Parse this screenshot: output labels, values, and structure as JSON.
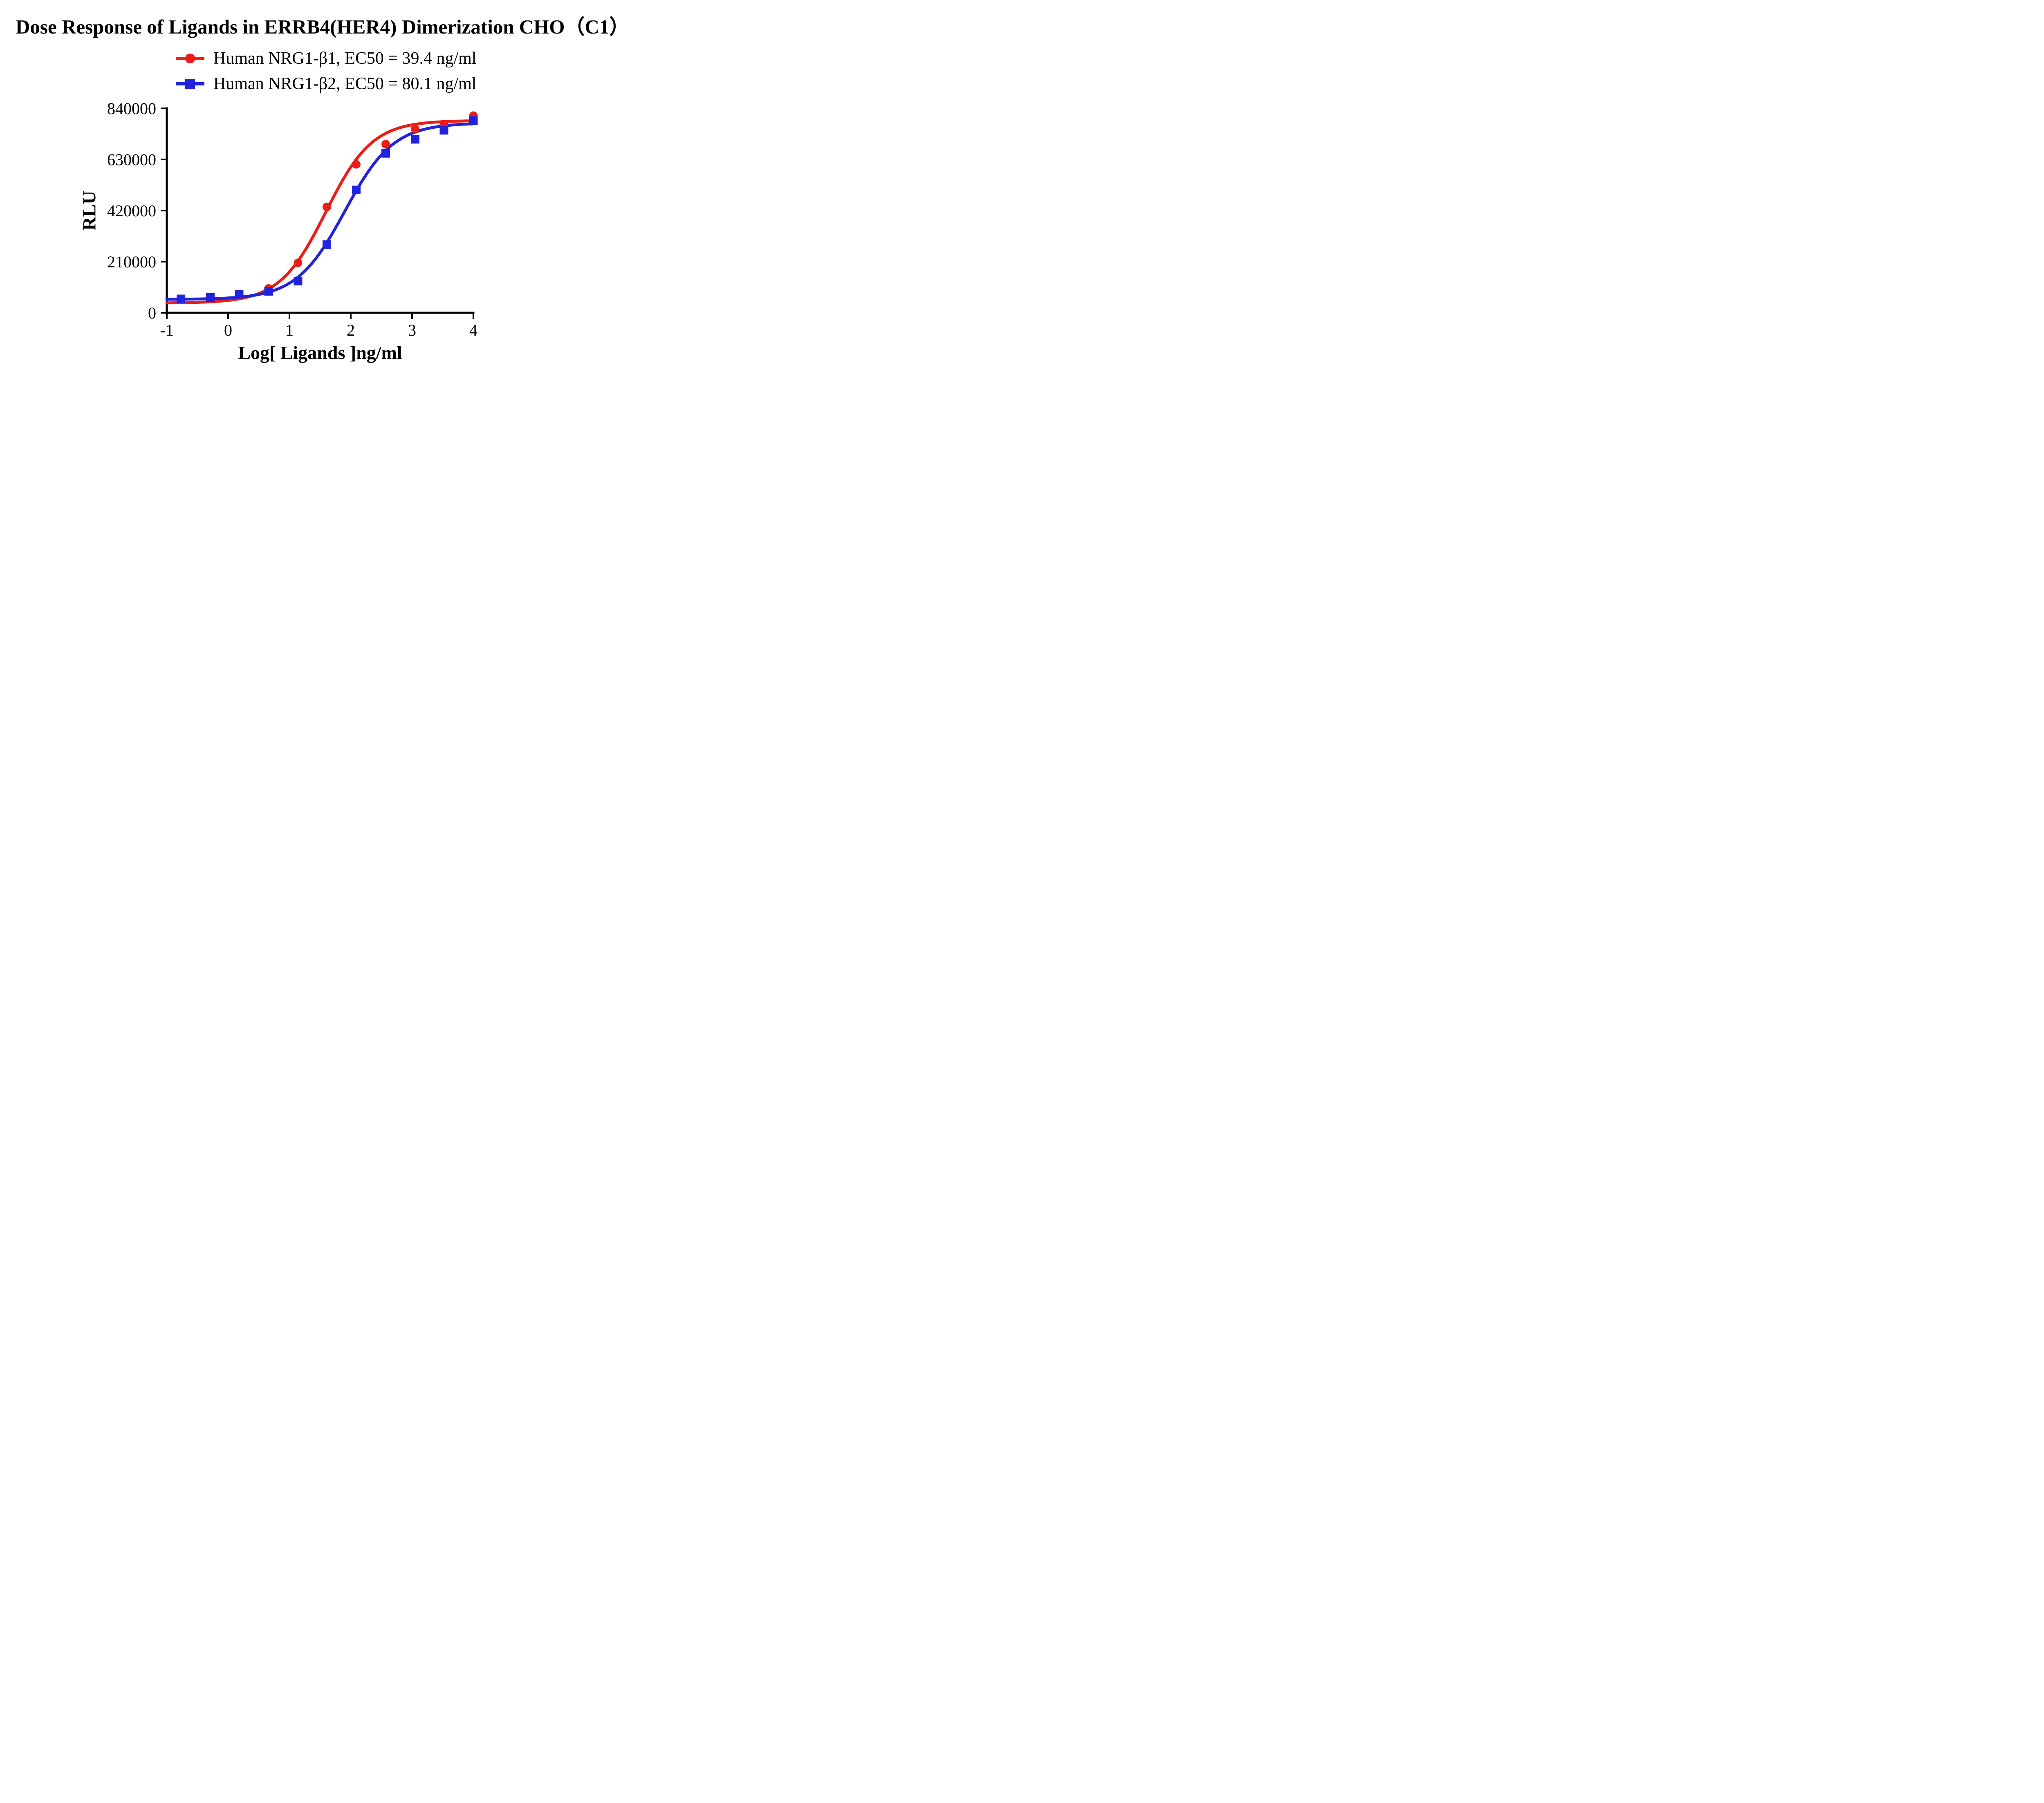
{
  "chart_data": {
    "type": "line",
    "title": "Dose Response of Ligands in ERRB4(HER4) Dimerization CHO（C1）",
    "xlabel": "Log[ Ligands ]ng/ml",
    "ylabel": "RLU",
    "xlim": [
      -1,
      4
    ],
    "ylim": [
      0,
      840000
    ],
    "grid": false,
    "legend_position": "top-center",
    "x_ticks": [
      {
        "value": -1,
        "label": "-1"
      },
      {
        "value": 0,
        "label": "0"
      },
      {
        "value": 1,
        "label": "1"
      },
      {
        "value": 2,
        "label": "2"
      },
      {
        "value": 3,
        "label": "3"
      },
      {
        "value": 4,
        "label": "4"
      }
    ],
    "y_ticks": [
      {
        "value": 0,
        "label": "0"
      },
      {
        "value": 210000,
        "label": "210000"
      },
      {
        "value": 420000,
        "label": "420000"
      },
      {
        "value": 630000,
        "label": "630000"
      },
      {
        "value": 840000,
        "label": "840000"
      }
    ],
    "series": [
      {
        "name": "Human NRG1-β1",
        "label": "Human NRG1-β1, EC50 = 39.4 ng/ml",
        "ec50_ng_ml": 39.4,
        "color": "#ec1c16",
        "marker": "circle",
        "points": [
          {
            "x": 0.66,
            "y": 100000
          },
          {
            "x": 1.14,
            "y": 205000
          },
          {
            "x": 1.61,
            "y": 435000
          },
          {
            "x": 2.09,
            "y": 610000
          },
          {
            "x": 2.57,
            "y": 693000
          },
          {
            "x": 3.05,
            "y": 755000
          },
          {
            "x": 3.52,
            "y": 775000
          },
          {
            "x": 4.0,
            "y": 810000
          }
        ],
        "fit": {
          "bottom": 40000,
          "top": 790000,
          "logEC50": 1.5955,
          "hill": 1.15
        }
      },
      {
        "name": "Human NRG1-β2",
        "label": "Human NRG1-β2, EC50 = 80.1 ng/ml",
        "ec50_ng_ml": 80.1,
        "color": "#2222dd",
        "marker": "square",
        "points": [
          {
            "x": -0.77,
            "y": 57000
          },
          {
            "x": -0.29,
            "y": 63000
          },
          {
            "x": 0.18,
            "y": 76000
          },
          {
            "x": 0.66,
            "y": 88000
          },
          {
            "x": 1.14,
            "y": 130000
          },
          {
            "x": 1.61,
            "y": 280000
          },
          {
            "x": 2.09,
            "y": 505000
          },
          {
            "x": 2.57,
            "y": 655000
          },
          {
            "x": 3.05,
            "y": 713000
          },
          {
            "x": 3.52,
            "y": 750000
          },
          {
            "x": 4.0,
            "y": 790000
          }
        ],
        "fit": {
          "bottom": 55000,
          "top": 780000,
          "logEC50": 1.9036,
          "hill": 1.1
        }
      }
    ]
  }
}
